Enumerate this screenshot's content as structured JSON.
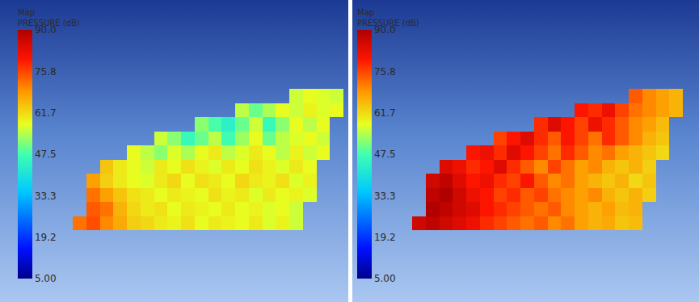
{
  "chart_data": [
    {
      "type": "heatmap",
      "colorbar_title": [
        "Map",
        "PRESSURE (dB)"
      ],
      "tick_labels": false,
      "zlim": [
        5,
        90
      ],
      "zticks": [
        {
          "value": 90,
          "label": "90.0"
        },
        {
          "value": 75.8,
          "label": "75.8"
        },
        {
          "value": 61.7,
          "label": "61.7"
        },
        {
          "value": 47.5,
          "label": "47.5"
        },
        {
          "value": 33.3,
          "label": "33.3"
        },
        {
          "value": 19.2,
          "label": "19.2"
        },
        {
          "value": 5,
          "label": "5.00"
        }
      ],
      "cells": [
        [
          null,
          null,
          null,
          null,
          null,
          null,
          null,
          null,
          null,
          null,
          null,
          null,
          null,
          null,
          null,
          null,
          56,
          58,
          57,
          56
        ],
        [
          null,
          null,
          null,
          null,
          null,
          null,
          null,
          null,
          null,
          null,
          null,
          null,
          55,
          50,
          54,
          58,
          56,
          59,
          57,
          58
        ],
        [
          null,
          null,
          null,
          null,
          null,
          null,
          null,
          null,
          null,
          52,
          48,
          44,
          50,
          56,
          46,
          52,
          58,
          55,
          58,
          null
        ],
        [
          null,
          null,
          null,
          null,
          null,
          null,
          56,
          52,
          46,
          50,
          55,
          47,
          53,
          58,
          50,
          55,
          57,
          58,
          56,
          null
        ],
        [
          null,
          null,
          null,
          null,
          58,
          55,
          52,
          57,
          54,
          58,
          60,
          55,
          57,
          60,
          58,
          55,
          59,
          56,
          58,
          null
        ],
        [
          null,
          null,
          64,
          60,
          58,
          56,
          60,
          58,
          61,
          59,
          57,
          60,
          58,
          61,
          59,
          57,
          60,
          58,
          null,
          null
        ],
        [
          null,
          68,
          63,
          60,
          58,
          57,
          60,
          62,
          58,
          61,
          60,
          58,
          62,
          60,
          59,
          61,
          57,
          59,
          null,
          null
        ],
        [
          null,
          72,
          68,
          64,
          61,
          60,
          58,
          60,
          59,
          58,
          61,
          59,
          60,
          57,
          60,
          58,
          59,
          57,
          null,
          null
        ],
        [
          null,
          74,
          72,
          66,
          62,
          60,
          61,
          58,
          60,
          59,
          58,
          60,
          58,
          59,
          57,
          58,
          56,
          null,
          null,
          null
        ],
        [
          72,
          75,
          70,
          67,
          63,
          62,
          60,
          59,
          61,
          58,
          60,
          59,
          58,
          60,
          57,
          59,
          56,
          null,
          null,
          null
        ]
      ]
    },
    {
      "type": "heatmap",
      "colorbar_title": [
        "Map",
        "PRESSURE (dB)"
      ],
      "tick_labels": false,
      "zlim": [
        5,
        90
      ],
      "zticks": [
        {
          "value": 90,
          "label": "90.0"
        },
        {
          "value": 75.8,
          "label": "75.8"
        },
        {
          "value": 61.7,
          "label": "61.7"
        },
        {
          "value": 47.5,
          "label": "47.5"
        },
        {
          "value": 33.3,
          "label": "33.3"
        },
        {
          "value": 19.2,
          "label": "19.2"
        },
        {
          "value": 5,
          "label": "5.00"
        }
      ],
      "cells": [
        [
          null,
          null,
          null,
          null,
          null,
          null,
          null,
          null,
          null,
          null,
          null,
          null,
          null,
          null,
          null,
          null,
          74,
          70,
          68,
          66
        ],
        [
          null,
          null,
          null,
          null,
          null,
          null,
          null,
          null,
          null,
          null,
          null,
          null,
          80,
          78,
          82,
          76,
          72,
          70,
          68,
          66
        ],
        [
          null,
          null,
          null,
          null,
          null,
          null,
          null,
          null,
          null,
          78,
          84,
          80,
          76,
          82,
          78,
          74,
          70,
          68,
          65,
          null
        ],
        [
          null,
          null,
          null,
          null,
          null,
          null,
          76,
          80,
          84,
          78,
          74,
          80,
          76,
          72,
          78,
          74,
          70,
          66,
          64,
          null
        ],
        [
          null,
          null,
          null,
          null,
          80,
          82,
          78,
          84,
          80,
          76,
          72,
          78,
          74,
          70,
          72,
          68,
          66,
          64,
          62,
          null
        ],
        [
          null,
          null,
          84,
          82,
          78,
          80,
          84,
          78,
          74,
          70,
          76,
          72,
          68,
          70,
          66,
          64,
          66,
          63,
          null,
          null
        ],
        [
          null,
          86,
          88,
          84,
          80,
          82,
          78,
          76,
          80,
          74,
          70,
          72,
          68,
          66,
          64,
          66,
          62,
          64,
          null,
          null
        ],
        [
          null,
          88,
          90,
          86,
          82,
          80,
          76,
          78,
          74,
          76,
          72,
          70,
          68,
          70,
          66,
          64,
          66,
          63,
          null,
          null
        ],
        [
          null,
          90,
          88,
          86,
          84,
          80,
          78,
          76,
          74,
          72,
          74,
          70,
          68,
          66,
          68,
          65,
          66,
          null,
          null,
          null
        ],
        [
          86,
          88,
          86,
          84,
          82,
          78,
          76,
          74,
          72,
          74,
          70,
          72,
          68,
          66,
          67,
          64,
          65,
          null,
          null,
          null
        ]
      ]
    }
  ]
}
